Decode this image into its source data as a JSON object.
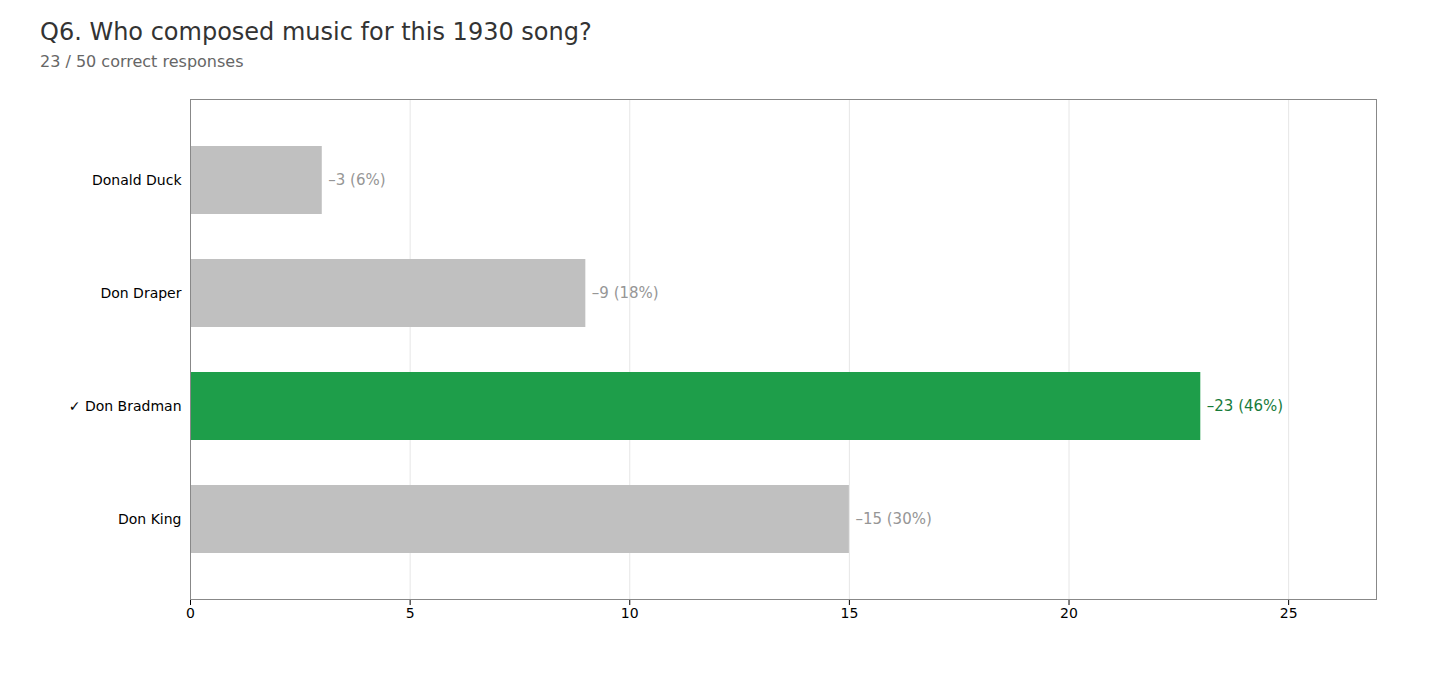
{
  "chart_data": {
    "type": "bar",
    "orientation": "horizontal",
    "title": "Q6. Who composed music for this 1930 song?",
    "subtitle": "23 / 50 correct responses",
    "categories": [
      "Don King",
      "✓ Don Bradman",
      "Don Draper",
      "Donald Duck"
    ],
    "values": [
      15,
      23,
      9,
      3
    ],
    "value_labels": [
      "–15 (30%)",
      "–23 (46%)",
      "–9 (18%)",
      "–3 (6%)"
    ],
    "colors": [
      "#c0c0c0",
      "#1e9e4a",
      "#c0c0c0",
      "#c0c0c0"
    ],
    "xlim": [
      0,
      27
    ],
    "xticks": [
      0,
      5,
      10,
      15,
      20,
      25
    ],
    "grid": true,
    "data_labels": true
  }
}
